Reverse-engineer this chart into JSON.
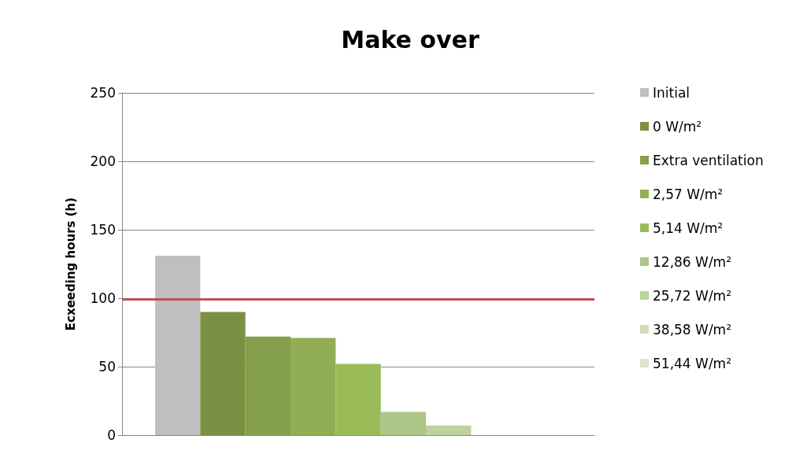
{
  "chart_data": {
    "type": "bar",
    "title": "Make over",
    "ylabel": "Ecxeeding hours (h)",
    "categories": [
      null
    ],
    "series": [
      {
        "name": "Initial",
        "color": "#bfbfbf",
        "values": [
          131
        ]
      },
      {
        "name": "0 W/m²",
        "color": "#7a9143",
        "values": [
          90
        ]
      },
      {
        "name": "Extra ventilation",
        "color": "#84a04b",
        "values": [
          72
        ]
      },
      {
        "name": "2,57 W/m²",
        "color": "#91ae56",
        "values": [
          71
        ]
      },
      {
        "name": "5,14 W/m²",
        "color": "#9bbb59",
        "values": [
          52
        ]
      },
      {
        "name": "12,86 W/m²",
        "color": "#adc587",
        "values": [
          17
        ]
      },
      {
        "name": "25,72 W/m²",
        "color": "#bdd39d",
        "values": [
          7
        ]
      },
      {
        "name": "38,58 W/m²",
        "color": "#cfdcba",
        "values": [
          0
        ]
      },
      {
        "name": "51,44 W/m²",
        "color": "#dce6cf",
        "values": [
          0
        ]
      }
    ],
    "ylim": [
      0,
      250
    ],
    "yticks": [
      0,
      50,
      100,
      150,
      200,
      250
    ],
    "grid": "y",
    "legend": "right",
    "ref_lines": [
      {
        "axis": "y",
        "value": 99,
        "color": "#c0504d"
      }
    ]
  }
}
